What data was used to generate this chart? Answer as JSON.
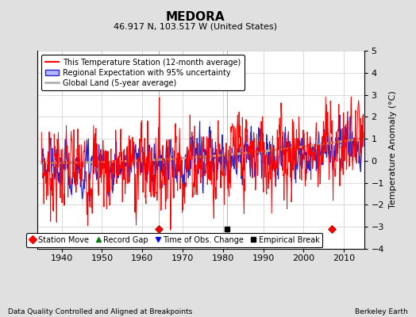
{
  "title": "MEDORA",
  "subtitle": "46.917 N, 103.517 W (United States)",
  "ylabel": "Temperature Anomaly (°C)",
  "ylim": [
    -4,
    5
  ],
  "xlim": [
    1934,
    2015
  ],
  "xticks": [
    1940,
    1950,
    1960,
    1970,
    1980,
    1990,
    2000,
    2010
  ],
  "yticks": [
    -4,
    -3,
    -2,
    -1,
    0,
    1,
    2,
    3,
    4,
    5
  ],
  "bg_color": "#e0e0e0",
  "plot_bg_color": "#ffffff",
  "station_move_years": [
    1964,
    2007
  ],
  "empirical_break_years": [
    1981
  ],
  "vline_years": [
    1964,
    1981
  ],
  "station_move_y": -3.1,
  "empirical_break_y": -3.1,
  "footer_left": "Data Quality Controlled and Aligned at Breakpoints",
  "footer_right": "Berkeley Earth",
  "title_fontsize": 11,
  "subtitle_fontsize": 8,
  "tick_labelsize": 8,
  "ylabel_fontsize": 8,
  "legend_fontsize": 7,
  "footer_fontsize": 6.5
}
